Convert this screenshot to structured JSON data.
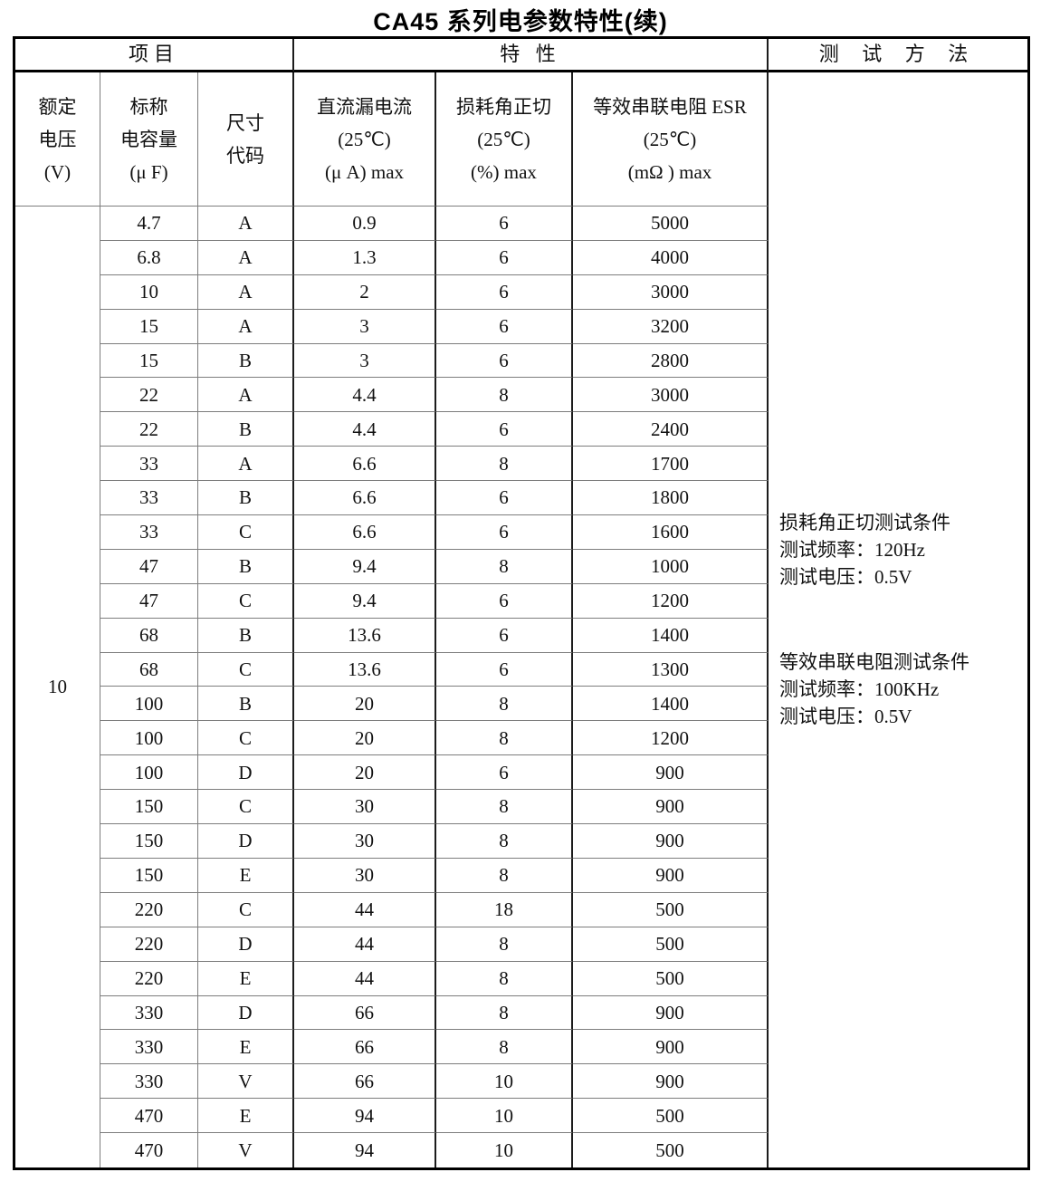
{
  "title": "CA45 系列电参数特性(续)",
  "table": {
    "group_headers": {
      "items": "项目",
      "characteristics": "特 性",
      "test_method": "测 试 方 法"
    },
    "column_headers": {
      "rated_voltage": {
        "l1": "额定",
        "l2": "电压",
        "l3": "(V)"
      },
      "capacitance": {
        "l1": "标称",
        "l2": "电容量",
        "l3": "(μ F)"
      },
      "size_code": {
        "l1": "尺寸",
        "l2": "代码",
        "l3": ""
      },
      "leakage": {
        "l1": "直流漏电流",
        "l2": "(25℃)",
        "l3": "(μ A) max"
      },
      "tangent": {
        "l1": "损耗角正切",
        "l2": "(25℃)",
        "l3": "(%) max"
      },
      "esr": {
        "l1": "等效串联电阻 ESR",
        "l2": "(25℃)",
        "l3": "(mΩ ) max"
      }
    },
    "rated_voltage": "10",
    "rows": [
      [
        "4.7",
        "A",
        "0.9",
        "6",
        "5000"
      ],
      [
        "6.8",
        "A",
        "1.3",
        "6",
        "4000"
      ],
      [
        "10",
        "A",
        "2",
        "6",
        "3000"
      ],
      [
        "15",
        "A",
        "3",
        "6",
        "3200"
      ],
      [
        "15",
        "B",
        "3",
        "6",
        "2800"
      ],
      [
        "22",
        "A",
        "4.4",
        "8",
        "3000"
      ],
      [
        "22",
        "B",
        "4.4",
        "6",
        "2400"
      ],
      [
        "33",
        "A",
        "6.6",
        "8",
        "1700"
      ],
      [
        "33",
        "B",
        "6.6",
        "6",
        "1800"
      ],
      [
        "33",
        "C",
        "6.6",
        "6",
        "1600"
      ],
      [
        "47",
        "B",
        "9.4",
        "8",
        "1000"
      ],
      [
        "47",
        "C",
        "9.4",
        "6",
        "1200"
      ],
      [
        "68",
        "B",
        "13.6",
        "6",
        "1400"
      ],
      [
        "68",
        "C",
        "13.6",
        "6",
        "1300"
      ],
      [
        "100",
        "B",
        "20",
        "8",
        "1400"
      ],
      [
        "100",
        "C",
        "20",
        "8",
        "1200"
      ],
      [
        "100",
        "D",
        "20",
        "6",
        "900"
      ],
      [
        "150",
        "C",
        "30",
        "8",
        "900"
      ],
      [
        "150",
        "D",
        "30",
        "8",
        "900"
      ],
      [
        "150",
        "E",
        "30",
        "8",
        "900"
      ],
      [
        "220",
        "C",
        "44",
        "18",
        "500"
      ],
      [
        "220",
        "D",
        "44",
        "8",
        "500"
      ],
      [
        "220",
        "E",
        "44",
        "8",
        "500"
      ],
      [
        "330",
        "D",
        "66",
        "8",
        "900"
      ],
      [
        "330",
        "E",
        "66",
        "8",
        "900"
      ],
      [
        "330",
        "V",
        "66",
        "10",
        "900"
      ],
      [
        "470",
        "E",
        "94",
        "10",
        "500"
      ],
      [
        "470",
        "V",
        "94",
        "10",
        "500"
      ]
    ],
    "test_method": {
      "block1": {
        "l1": "损耗角正切测试条件",
        "l2": "测试频率：120Hz",
        "l3": "测试电压：0.5V"
      },
      "block2": {
        "l1": "等效串联电阻测试条件",
        "l2": "测试频率：100KHz",
        "l3": "测试电压：0.5V"
      }
    }
  },
  "colors": {
    "border_outer": "#000000",
    "border_inner_light": "#7d7d7d",
    "border_inner_dark": "#1c1c1c",
    "text": "#111111"
  }
}
